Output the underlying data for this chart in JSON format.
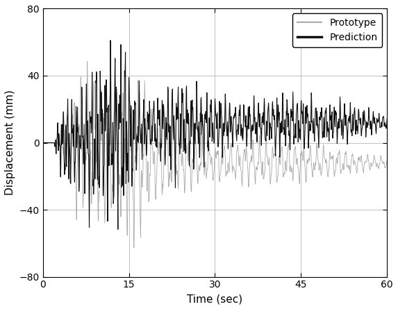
{
  "title": "",
  "xlabel": "Time (sec)",
  "ylabel": "Displacement (mm)",
  "xlim": [
    0,
    60
  ],
  "ylim": [
    -80,
    80
  ],
  "xticks": [
    0,
    15,
    30,
    45,
    60
  ],
  "yticks": [
    -80,
    -40,
    0,
    40,
    80
  ],
  "prototype_color": "#aaaaaa",
  "prediction_color": "#111111",
  "prototype_lw": 0.6,
  "prediction_lw": 0.8,
  "legend_labels": [
    "Prototype",
    "Prediction"
  ],
  "grid": true,
  "figsize": [
    5.73,
    4.45
  ],
  "dpi": 100
}
